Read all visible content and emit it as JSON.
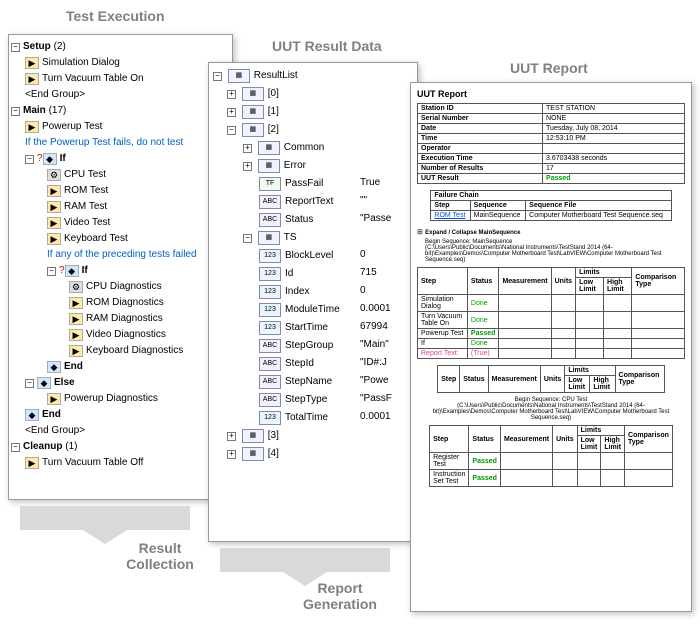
{
  "titles": {
    "testExecution": "Test Execution",
    "uutResultData": "UUT Result Data",
    "uutReport": "UUT Report"
  },
  "flowLabels": {
    "resultCollection": "Result\nCollection",
    "reportGeneration": "Report\nGeneration"
  },
  "testTree": {
    "setup": {
      "label": "Setup",
      "count": "(2)"
    },
    "setupItems": [
      "Simulation Dialog",
      "Turn Vacuum Table On",
      "<End Group>"
    ],
    "main": {
      "label": "Main",
      "count": "(17)"
    },
    "mainItems": {
      "powerupTest": "Powerup Test",
      "note1": "If the Powerup Test fails, do not test",
      "if": "If",
      "tests": [
        "CPU Test",
        "ROM Test",
        "RAM Test",
        "Video Test",
        "Keyboard Test"
      ],
      "note2": "If any of the preceding tests failed",
      "if2": "If",
      "diags": [
        "CPU Diagnostics",
        "ROM Diagnostics",
        "RAM Diagnostics",
        "Video Diagnostics",
        "Keyboard Diagnostics"
      ],
      "end1": "End",
      "else": "Else",
      "powerupDiag": "Powerup Diagnostics",
      "end2": "End",
      "endGroup": "<End Group>"
    },
    "cleanup": {
      "label": "Cleanup",
      "count": "(1)"
    },
    "cleanupItems": [
      "Turn Vacuum Table Off"
    ]
  },
  "resultTree": {
    "root": "ResultList",
    "items": [
      "[0]",
      "[1]",
      "[2]",
      "[3]",
      "[4]"
    ],
    "commonLabel": "Common",
    "errorLabel": "Error",
    "fields": [
      {
        "icon": "TF",
        "name": "PassFail",
        "value": "True"
      },
      {
        "icon": "ABC",
        "name": "ReportText",
        "value": "\"\""
      },
      {
        "icon": "ABC",
        "name": "Status",
        "value": "\"Passe"
      }
    ],
    "tsLabel": "TS",
    "tsFields": [
      {
        "icon": "123",
        "name": "BlockLevel",
        "value": "0"
      },
      {
        "icon": "123",
        "name": "Id",
        "value": "715"
      },
      {
        "icon": "123",
        "name": "Index",
        "value": "0"
      },
      {
        "icon": "123",
        "name": "ModuleTime",
        "value": "0.0001"
      },
      {
        "icon": "123",
        "name": "StartTime",
        "value": "67994"
      },
      {
        "icon": "ABC",
        "name": "StepGroup",
        "value": "\"Main\""
      },
      {
        "icon": "ABC",
        "name": "StepId",
        "value": "\"ID#:J"
      },
      {
        "icon": "ABC",
        "name": "StepName",
        "value": "\"Powe"
      },
      {
        "icon": "ABC",
        "name": "StepType",
        "value": "\"PassF"
      },
      {
        "icon": "123",
        "name": "TotalTime",
        "value": "0.0001"
      }
    ]
  },
  "report": {
    "title": "UUT Report",
    "header": [
      [
        "Station ID",
        "TEST STATION"
      ],
      [
        "Serial Number",
        "NONE"
      ],
      [
        "Date",
        "Tuesday, July 08, 2014"
      ],
      [
        "Time",
        "12:53:10 PM"
      ],
      [
        "Operator",
        ""
      ],
      [
        "Execution Time",
        "3.6703438 seconds"
      ],
      [
        "Number of Results",
        "17"
      ],
      [
        "UUT Result",
        "Passed"
      ]
    ],
    "failureChain": {
      "caption": "Failure Chain",
      "cols": [
        "Step",
        "Sequence",
        "Sequence File"
      ],
      "row": [
        "ROM Test",
        "MainSequence",
        "Computer Motherboard Test Sequence.seq"
      ]
    },
    "expand": "Expand / Collapse MainSequence",
    "beginSeq": "Begin Sequence: MainSequence\n(C:\\Users\\Public\\Documents\\National Instruments\\TestStand 2014 (64-bit)\\Examples\\Demos\\Computer Motherboard Test\\LabVIEW\\Computer Motherboard Test Sequence.seq)",
    "stepCols": [
      "Step",
      "Status",
      "Measurement",
      "Units",
      "Low Limit",
      "High Limit",
      "Comparison Type"
    ],
    "stepsTable1": [
      [
        "Simulation Dialog",
        "Done",
        "",
        "",
        "",
        "",
        ""
      ],
      [
        "Turn Vacuum Table On",
        "Done",
        "",
        "",
        "",
        "",
        ""
      ],
      [
        "Powerup Test",
        "Passed",
        "",
        "",
        "",
        "",
        ""
      ],
      [
        "If",
        "Done",
        "",
        "",
        "",
        "",
        ""
      ],
      [
        "Report Text:",
        "(True)",
        "",
        "",
        "",
        "",
        ""
      ]
    ],
    "limitsCaption": "Limits",
    "beginSeq2": "Begin Sequence: CPU Test\n(C:\\Users\\Public\\Documents\\National Instruments\\TestStand 2014 (64-bit)\\Examples\\Demos\\Computer Motherboard Test\\LabVIEW\\Computer Motherboard Test Sequence.seq)",
    "stepsTable2": [
      [
        "Register Test",
        "Passed",
        "",
        "",
        "",
        "",
        ""
      ],
      [
        "Instruction Set Test",
        "Passed",
        "",
        "",
        "",
        "",
        ""
      ]
    ]
  },
  "colors": {
    "titleGray": "#808080",
    "blueText": "#0060c0",
    "passGreen": "#009900",
    "pink": "#e040a0"
  }
}
